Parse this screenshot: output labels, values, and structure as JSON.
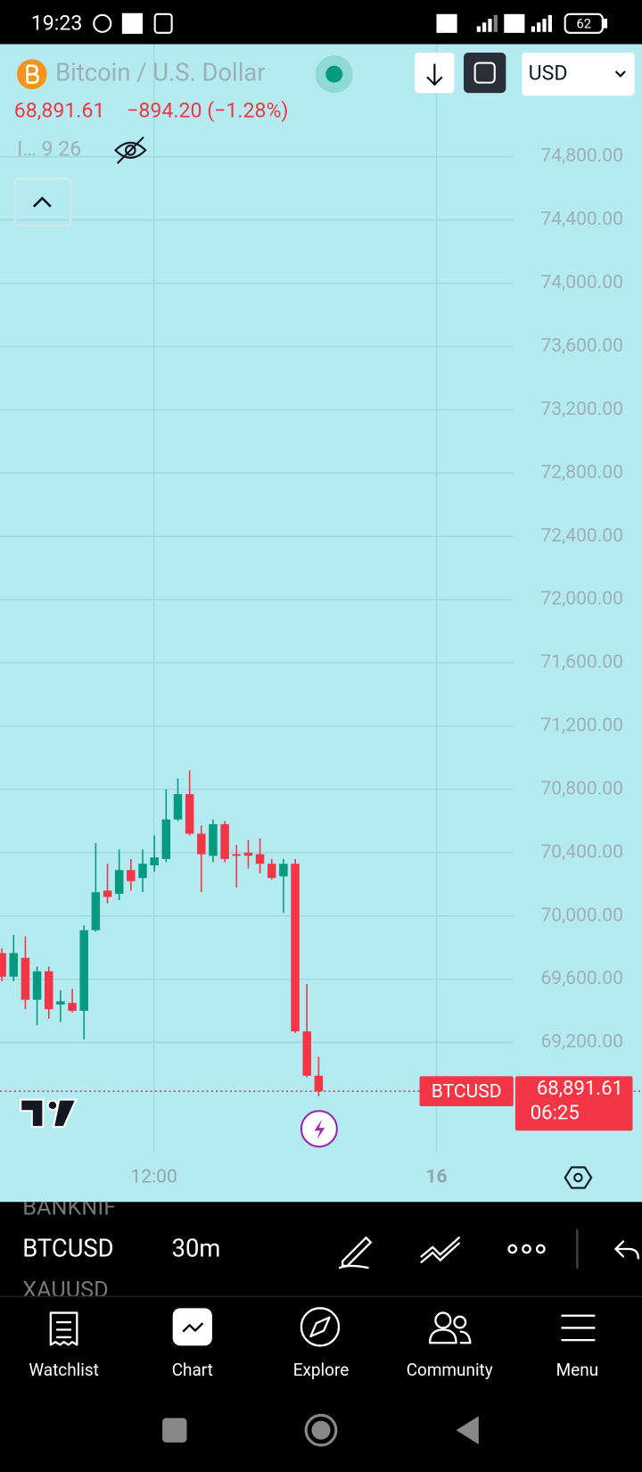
{
  "status_bar": {
    "time": "19:23",
    "battery": "62"
  },
  "header": {
    "title": "Bitcoin / U.S. Dollar",
    "change": "−894.20 (−1.28%)",
    "indicator": "I…  9 26",
    "currency": "USD"
  },
  "chart_data": {
    "type": "candlestick",
    "up_color": "#089981",
    "down_color": "#f23645",
    "ylim": [
      68500,
      75500
    ],
    "yticks": [
      {
        "value": 74800,
        "label": "74,800.00"
      },
      {
        "value": 74400,
        "label": "74,400.00"
      },
      {
        "value": 74000,
        "label": "74,000.00"
      },
      {
        "value": 73600,
        "label": "73,600.00"
      },
      {
        "value": 73200,
        "label": "73,200.00"
      },
      {
        "value": 72800,
        "label": "72,800.00"
      },
      {
        "value": 72400,
        "label": "72,400.00"
      },
      {
        "value": 72000,
        "label": "72,000.00"
      },
      {
        "value": 71600,
        "label": "71,600.00"
      },
      {
        "value": 71200,
        "label": "71,200.00"
      },
      {
        "value": 70800,
        "label": "70,800.00"
      },
      {
        "value": 70400,
        "label": "70,400.00"
      },
      {
        "value": 70000,
        "label": "70,000.00"
      },
      {
        "value": 69600,
        "label": "69,600.00"
      },
      {
        "value": 69200,
        "label": "69,200.00"
      }
    ],
    "x_labels": [
      "12:00",
      "16"
    ],
    "grid": true,
    "symbol": "BTCUSD",
    "last_price": {
      "value": 68891.61,
      "label": "68,891.61"
    },
    "countdown": "06:25",
    "candles": [
      {
        "open": 69765,
        "high": 69795,
        "low": 69587,
        "close": 69616
      },
      {
        "open": 69616,
        "high": 69880,
        "low": 69587,
        "close": 69765
      },
      {
        "open": 69735,
        "high": 69870,
        "low": 69410,
        "close": 69470
      },
      {
        "open": 69470,
        "high": 69680,
        "low": 69310,
        "close": 69650
      },
      {
        "open": 69650,
        "high": 69680,
        "low": 69350,
        "close": 69410
      },
      {
        "open": 69440,
        "high": 69530,
        "low": 69330,
        "close": 69460
      },
      {
        "open": 69450,
        "high": 69540,
        "low": 69390,
        "close": 69400
      },
      {
        "open": 69400,
        "high": 69940,
        "low": 69220,
        "close": 69910
      },
      {
        "open": 69910,
        "high": 70460,
        "low": 69900,
        "close": 70150
      },
      {
        "open": 70160,
        "high": 70330,
        "low": 70080,
        "close": 70120
      },
      {
        "open": 70140,
        "high": 70420,
        "low": 70100,
        "close": 70290
      },
      {
        "open": 70290,
        "high": 70360,
        "low": 70160,
        "close": 70220
      },
      {
        "open": 70240,
        "high": 70420,
        "low": 70150,
        "close": 70330
      },
      {
        "open": 70320,
        "high": 70510,
        "low": 70280,
        "close": 70370
      },
      {
        "open": 70360,
        "high": 70800,
        "low": 70340,
        "close": 70610
      },
      {
        "open": 70610,
        "high": 70870,
        "low": 70600,
        "close": 70770
      },
      {
        "open": 70770,
        "high": 70920,
        "low": 70510,
        "close": 70520
      },
      {
        "open": 70520,
        "high": 70570,
        "low": 70150,
        "close": 70390
      },
      {
        "open": 70380,
        "high": 70610,
        "low": 70340,
        "close": 70580
      },
      {
        "open": 70580,
        "high": 70600,
        "low": 70340,
        "close": 70360
      },
      {
        "open": 70390,
        "high": 70450,
        "low": 70180,
        "close": 70380
      },
      {
        "open": 70400,
        "high": 70480,
        "low": 70300,
        "close": 70380
      },
      {
        "open": 70390,
        "high": 70490,
        "low": 70270,
        "close": 70330
      },
      {
        "open": 70330,
        "high": 70360,
        "low": 70230,
        "close": 70240
      },
      {
        "open": 70250,
        "high": 70360,
        "low": 70020,
        "close": 70330
      },
      {
        "open": 70330,
        "high": 70360,
        "low": 69260,
        "close": 69270
      },
      {
        "open": 69270,
        "high": 69570,
        "low": 68980,
        "close": 68990
      },
      {
        "open": 68990,
        "high": 69110,
        "low": 68860,
        "close": 68891.61
      }
    ]
  },
  "toolbar": {
    "prev_symbol": "BANKNIF",
    "symbol": "BTCUSD",
    "interval": "30m",
    "next_symbol": "XAUUSD"
  },
  "nav": [
    "Watchlist",
    "Chart",
    "Explore",
    "Community",
    "Menu"
  ]
}
